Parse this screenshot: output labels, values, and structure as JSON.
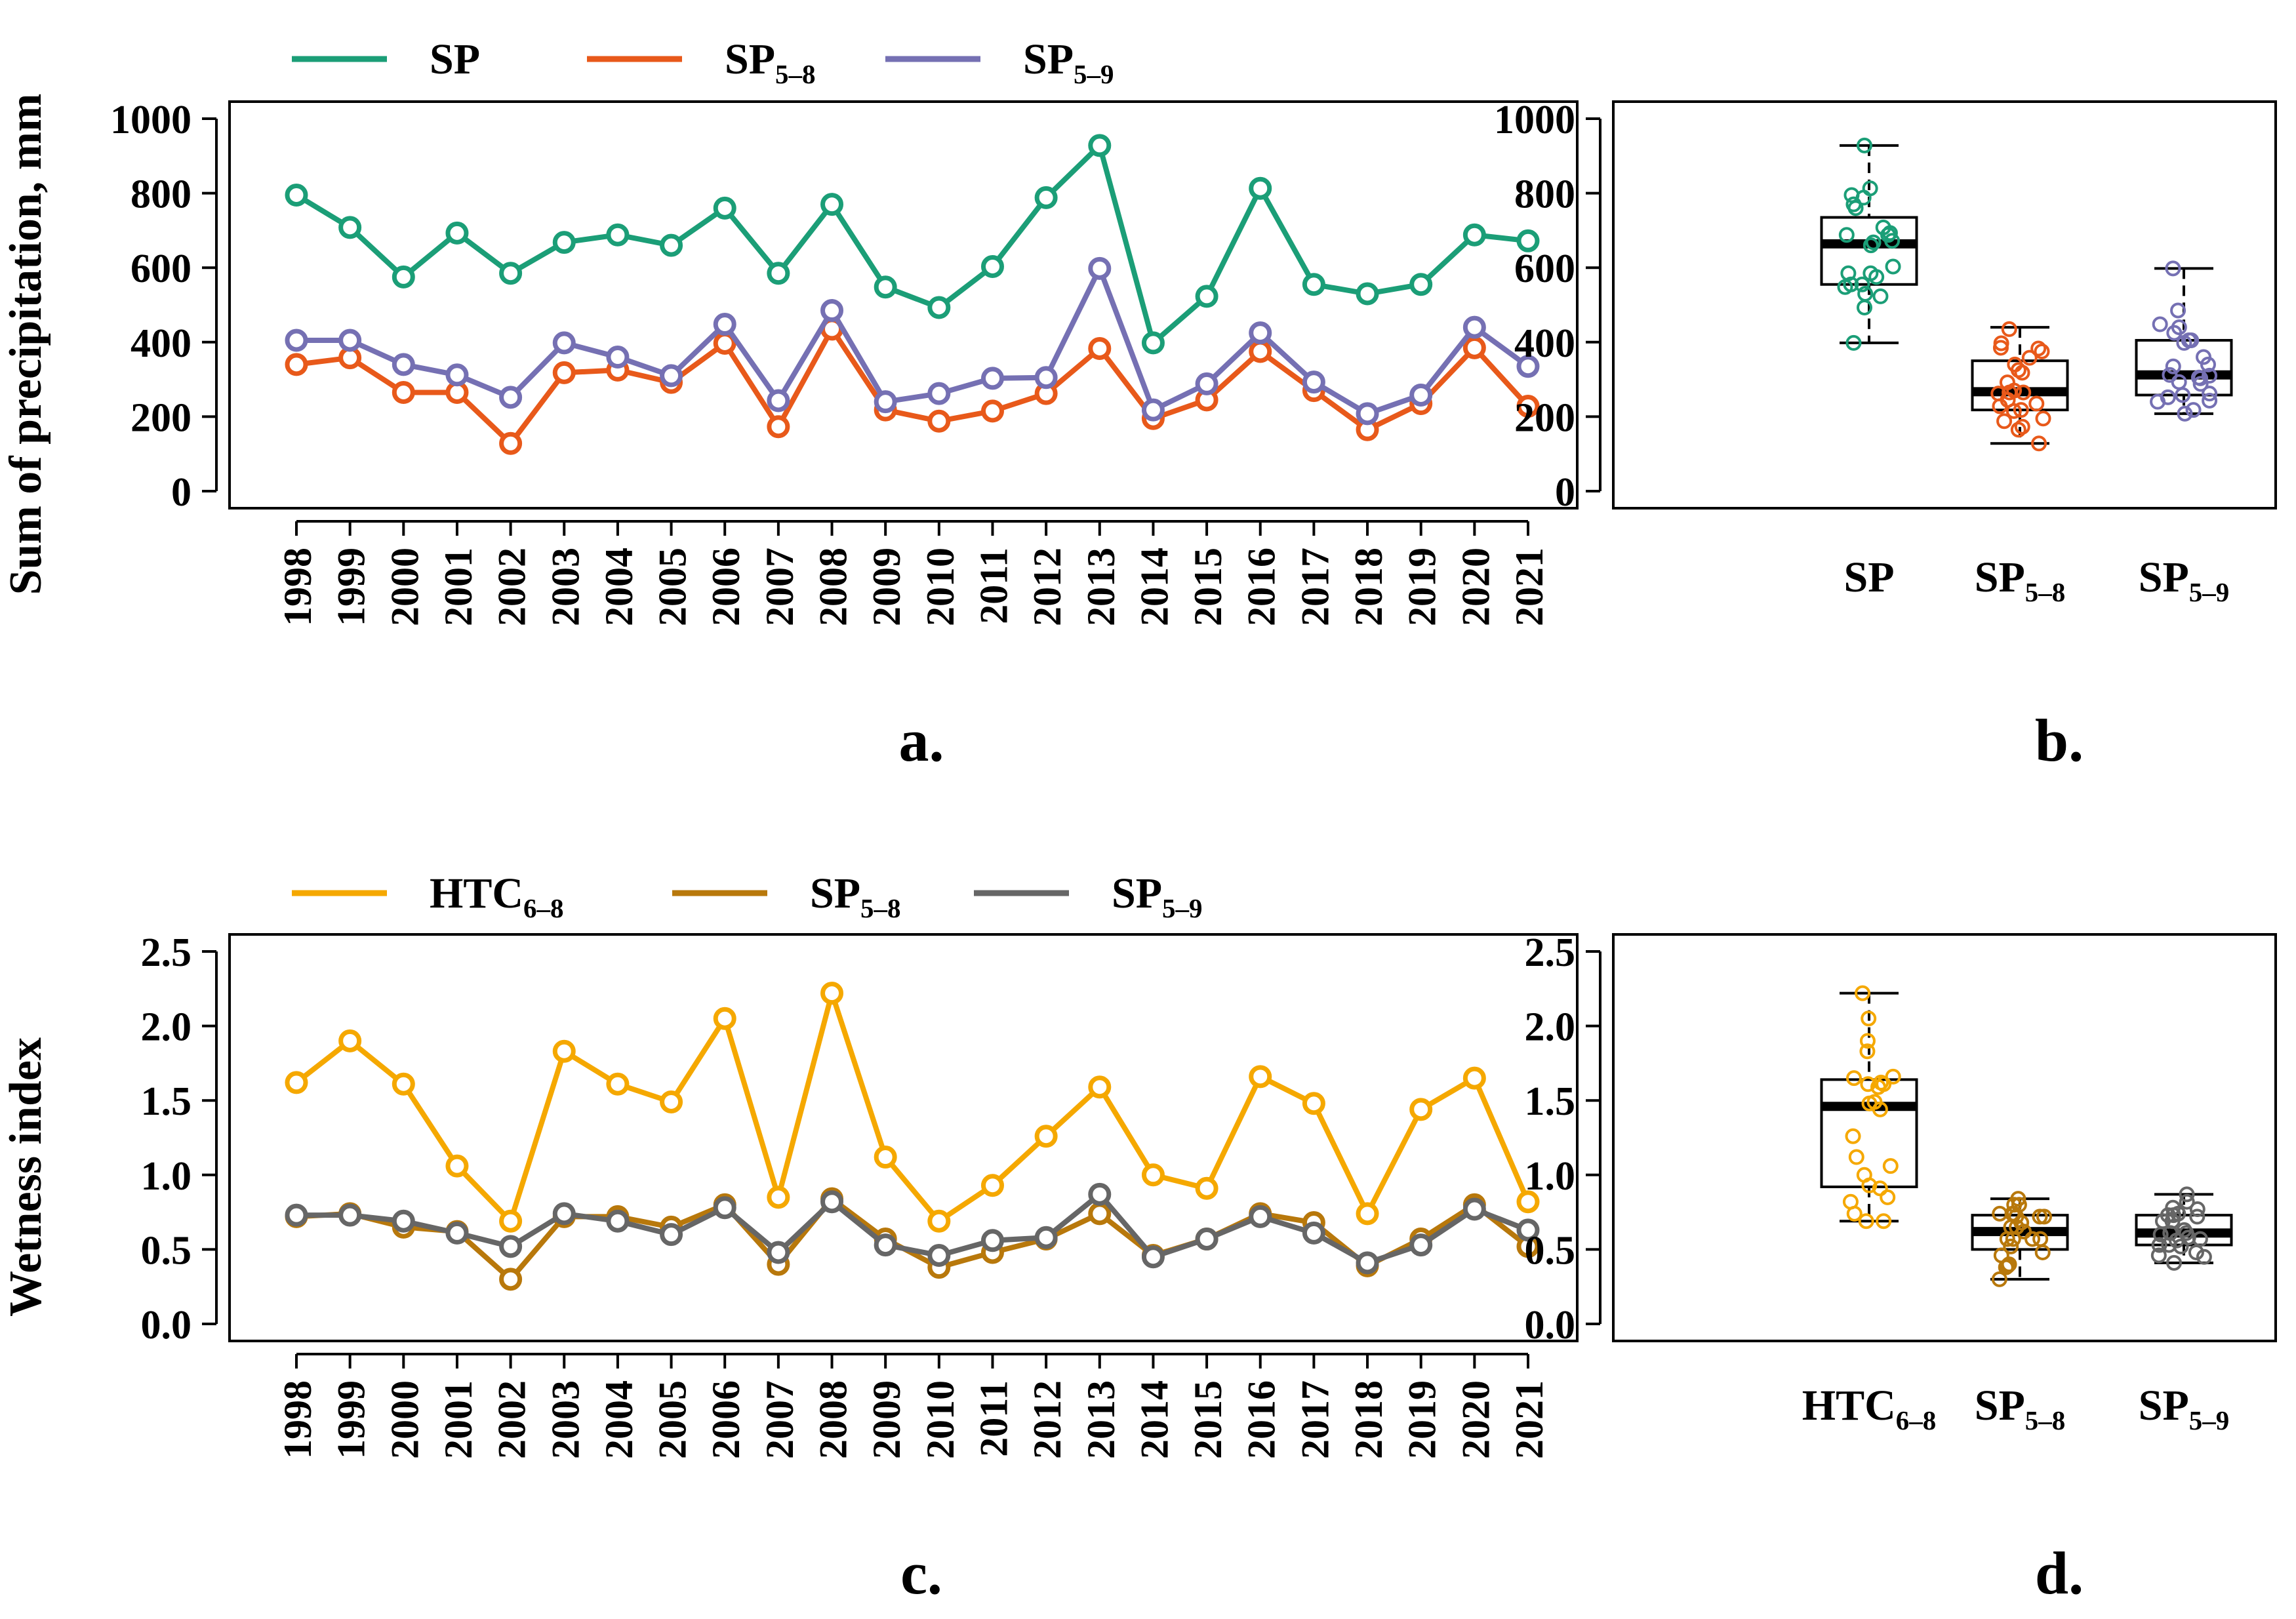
{
  "panels": [
    {
      "type": "line",
      "letter": "a.",
      "ylabel": "Sum of precipitation, mm",
      "xlabel": "",
      "ylim": [
        0,
        1000
      ],
      "yticks": [
        "0",
        "200",
        "400",
        "600",
        "800",
        "1000"
      ],
      "categories": [
        "1998",
        "1999",
        "2000",
        "2001",
        "2002",
        "2003",
        "2004",
        "2005",
        "2006",
        "2007",
        "2008",
        "2009",
        "2010",
        "2011",
        "2012",
        "2013",
        "2014",
        "2015",
        "2016",
        "2017",
        "2018",
        "2019",
        "2020",
        "2021"
      ],
      "series": [
        {
          "name": "SP",
          "sub": "",
          "color": "#1b9e77",
          "values": [
            795,
            708,
            575,
            693,
            585,
            668,
            688,
            660,
            760,
            585,
            770,
            548,
            493,
            603,
            788,
            928,
            398,
            523,
            813,
            555,
            530,
            555,
            688,
            672
          ]
        },
        {
          "name": "SP",
          "sub": "5–8",
          "color": "#e8591a",
          "values": [
            340,
            358,
            265,
            265,
            128,
            318,
            325,
            292,
            397,
            173,
            435,
            218,
            188,
            215,
            262,
            383,
            195,
            245,
            375,
            270,
            165,
            235,
            385,
            228
          ]
        },
        {
          "name": "SP",
          "sub": "5–9",
          "color": "#7570b3",
          "values": [
            405,
            405,
            340,
            312,
            252,
            398,
            360,
            310,
            448,
            243,
            485,
            240,
            262,
            303,
            305,
            598,
            218,
            288,
            425,
            293,
            208,
            258,
            440,
            335
          ]
        }
      ]
    },
    {
      "type": "box",
      "letter": "b.",
      "ylim": [
        0,
        1000
      ],
      "yticks": [
        "0",
        "200",
        "400",
        "600",
        "800",
        "1000"
      ],
      "groups": [
        {
          "name": "SP",
          "sub": "",
          "color": "#1b9e77",
          "stats": {
            "min": 398,
            "q1": 555,
            "median": 664,
            "q3": 735,
            "max": 928
          }
        },
        {
          "name": "SP",
          "sub": "5–8",
          "color": "#e8591a",
          "stats": {
            "min": 128,
            "q1": 218,
            "median": 267,
            "q3": 350,
            "max": 440
          }
        },
        {
          "name": "SP",
          "sub": "5–9",
          "color": "#7570b3",
          "stats": {
            "min": 208,
            "q1": 258,
            "median": 312,
            "q3": 405,
            "max": 598
          }
        }
      ]
    },
    {
      "type": "line",
      "letter": "c.",
      "ylabel": "Wetness index",
      "xlabel": "",
      "ylim": [
        0,
        2.5
      ],
      "yticks": [
        "0.0",
        "0.5",
        "1.0",
        "1.5",
        "2.0",
        "2.5"
      ],
      "categories": [
        "1998",
        "1999",
        "2000",
        "2001",
        "2002",
        "2003",
        "2004",
        "2005",
        "2006",
        "2007",
        "2008",
        "2009",
        "2010",
        "2011",
        "2012",
        "2013",
        "2014",
        "2015",
        "2016",
        "2017",
        "2018",
        "2019",
        "2020",
        "2021"
      ],
      "series": [
        {
          "name": "HTC",
          "sub": "6–8",
          "color": "#f5a800",
          "values": [
            1.62,
            1.9,
            1.61,
            1.06,
            0.69,
            1.83,
            1.61,
            1.49,
            2.05,
            0.85,
            2.22,
            1.12,
            0.69,
            0.93,
            1.26,
            1.59,
            1.0,
            0.91,
            1.66,
            1.48,
            0.74,
            1.44,
            1.65,
            0.82
          ]
        },
        {
          "name": "SP",
          "sub": "5–8",
          "color": "#b8780b",
          "values": [
            0.72,
            0.74,
            0.65,
            0.62,
            0.3,
            0.72,
            0.72,
            0.65,
            0.8,
            0.4,
            0.84,
            0.57,
            0.38,
            0.48,
            0.57,
            0.74,
            0.46,
            0.57,
            0.74,
            0.68,
            0.39,
            0.57,
            0.8,
            0.52
          ]
        },
        {
          "name": "SP",
          "sub": "5–9",
          "color": "#666666",
          "values": [
            0.73,
            0.73,
            0.69,
            0.61,
            0.52,
            0.74,
            0.69,
            0.6,
            0.78,
            0.48,
            0.82,
            0.53,
            0.46,
            0.56,
            0.58,
            0.87,
            0.45,
            0.57,
            0.72,
            0.61,
            0.41,
            0.53,
            0.77,
            0.63
          ]
        }
      ]
    },
    {
      "type": "box",
      "letter": "d.",
      "ylim": [
        0,
        2.5
      ],
      "yticks": [
        "0.0",
        "0.5",
        "1.0",
        "1.5",
        "2.0",
        "2.5"
      ],
      "groups": [
        {
          "name": "HTC",
          "sub": "6–8",
          "color": "#f5a800",
          "stats": {
            "min": 0.69,
            "q1": 0.92,
            "median": 1.46,
            "q3": 1.64,
            "max": 2.22
          }
        },
        {
          "name": "SP",
          "sub": "5–8",
          "color": "#b8780b",
          "stats": {
            "min": 0.3,
            "q1": 0.5,
            "median": 0.62,
            "q3": 0.73,
            "max": 0.84
          }
        },
        {
          "name": "SP",
          "sub": "5–9",
          "color": "#666666",
          "stats": {
            "min": 0.41,
            "q1": 0.53,
            "median": 0.61,
            "q3": 0.73,
            "max": 0.87
          }
        }
      ]
    }
  ]
}
